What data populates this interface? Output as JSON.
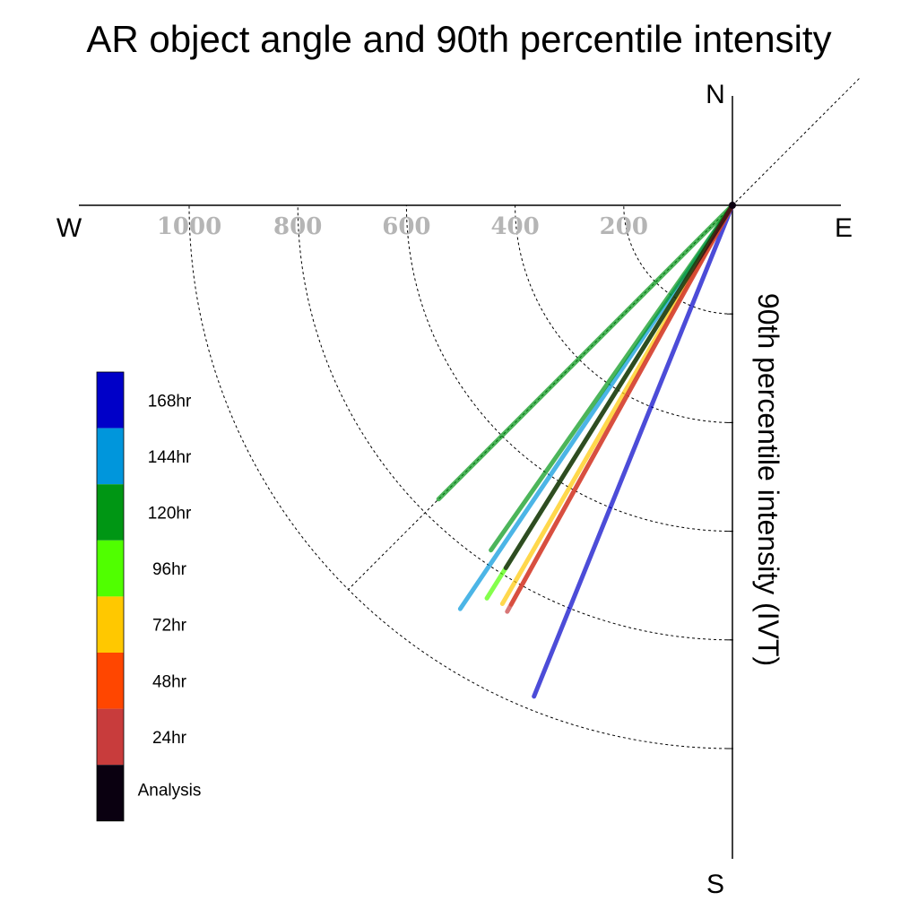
{
  "chart_data": {
    "type": "polar-vector",
    "title": "AR object angle and 90th percentile intensity",
    "ylabel": "90th percentile intensity (IVT)",
    "compass": {
      "north": "N",
      "south": "S",
      "east": "E",
      "west": "W"
    },
    "radial_ticks": [
      "1000",
      "800",
      "600",
      "400",
      "200"
    ],
    "radial_tick_values": [
      1000,
      800,
      600,
      400,
      200
    ],
    "rlim": [
      0,
      1200
    ],
    "grid": true,
    "legend_position": "left",
    "series": [
      {
        "name": "168hr",
        "color": "#0000c8",
        "angle_deg": 202,
        "intensity": 975
      },
      {
        "name": "144hr",
        "color": "#0096dc",
        "angle_deg": 214,
        "intensity": 896
      },
      {
        "name": "120hr",
        "color": "#009614",
        "angle_deg": 225,
        "intensity": 765
      },
      {
        "name": "120hr",
        "color": "#009614",
        "angle_deg": 215,
        "intensity": 775
      },
      {
        "name": "96hr",
        "color": "#50ff00",
        "angle_deg": 212,
        "intensity": 853
      },
      {
        "name": "72hr",
        "color": "#ffc800",
        "angle_deg": 210,
        "intensity": 847
      },
      {
        "name": "48hr",
        "color": "#ff4600",
        "angle_deg": 209,
        "intensity": 840
      },
      {
        "name": "24hr",
        "color": "#c83c3c",
        "angle_deg": 209,
        "intensity": 855
      },
      {
        "name": "Analysis",
        "color": "#0a0010",
        "angle_deg": 212,
        "intensity": 787
      }
    ],
    "legend": [
      {
        "label": "168hr",
        "color": "#0000c8"
      },
      {
        "label": "144hr",
        "color": "#0096dc"
      },
      {
        "label": "120hr",
        "color": "#009614"
      },
      {
        "label": "96hr",
        "color": "#50ff00"
      },
      {
        "label": "72hr",
        "color": "#ffc800"
      },
      {
        "label": "48hr",
        "color": "#ff4600"
      },
      {
        "label": "24hr",
        "color": "#c83c3c"
      },
      {
        "label": "Analysis",
        "color": "#0a0010"
      }
    ]
  }
}
